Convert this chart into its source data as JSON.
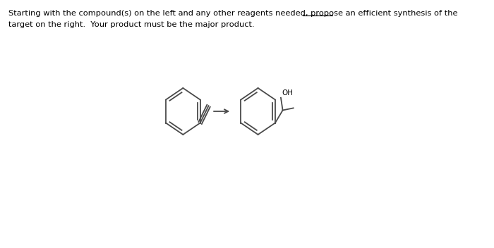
{
  "bg_color": "#ffffff",
  "text_color": "#000000",
  "line_color": "#4a4a4a",
  "fig_width": 7.0,
  "fig_height": 3.52,
  "dpi": 100,
  "line1": "Starting with the compound(s) on the left and any other reagents needed, propose an efficient synthesis of the",
  "line2": "target on the right.  Your product must be the major product.",
  "fontsize": 8.2
}
